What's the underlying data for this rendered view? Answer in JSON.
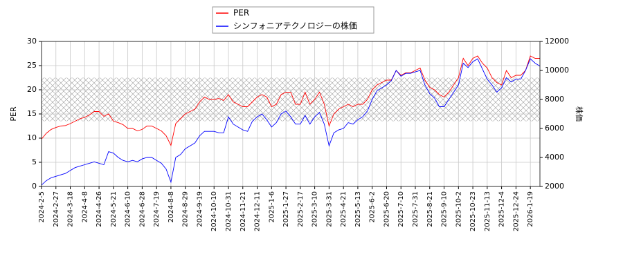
{
  "chart_data": {
    "type": "line",
    "categories": [
      "2024-2-5",
      null,
      null,
      "2024-2-27",
      null,
      null,
      "2024-3-18",
      null,
      null,
      "2024-4-8",
      null,
      null,
      "2024-4-26",
      null,
      null,
      "2024-5-21",
      null,
      null,
      "2024-6-10",
      null,
      null,
      "2024-6-28",
      null,
      null,
      "2024-7-19",
      null,
      null,
      "2024-8-8",
      null,
      null,
      "2024-8-29",
      null,
      null,
      "2024-9-19",
      null,
      null,
      "2024-10-10",
      null,
      null,
      "2024-10-31",
      null,
      null,
      "2024-11-21",
      null,
      null,
      "2024-12-11",
      null,
      null,
      "2025-1-6",
      null,
      null,
      "2025-1-27",
      null,
      null,
      "2025-2-17",
      null,
      null,
      "2025-3-10",
      null,
      null,
      "2025-3-31",
      null,
      null,
      "2025-4-21",
      null,
      null,
      "2025-5-13",
      null,
      null,
      "2025-6-2",
      null,
      null,
      "2025-6-20",
      null,
      null,
      "2025-7-10",
      null,
      null,
      "2025-7-31",
      null,
      null,
      "2025-8-21",
      null,
      null,
      "2025-9-10",
      null,
      null,
      "2025-10-2",
      null,
      null,
      "2025-10-23",
      null,
      null,
      "2025-11-13",
      null,
      null,
      "2025-12-4",
      null,
      null,
      "2025-12-24",
      null,
      null,
      "2026-1-19",
      null,
      null
    ],
    "series": [
      {
        "name": "PER",
        "color": "#ff0000",
        "axis": "y",
        "values": [
          9.8,
          11,
          11.8,
          12.2,
          12.5,
          12.6,
          13,
          13.5,
          14,
          14.3,
          14.8,
          15.5,
          15.5,
          14.5,
          15,
          13.5,
          13.2,
          12.8,
          12,
          12,
          11.5,
          11.8,
          12.5,
          12.5,
          12,
          11.5,
          10.5,
          8.5,
          13,
          14,
          15,
          15.5,
          16,
          17.5,
          18.5,
          18,
          18,
          18.2,
          17.8,
          19,
          17.5,
          17,
          16.5,
          16.5,
          17.5,
          18.5,
          19,
          18.5,
          16.5,
          17,
          19,
          19.5,
          19.5,
          17,
          17,
          19.5,
          17,
          18,
          19.5,
          17,
          12.5,
          15,
          16,
          16.5,
          17,
          16.5,
          17,
          17,
          18,
          20,
          21,
          21.5,
          22,
          22,
          24,
          23,
          23.5,
          23.5,
          24,
          24.5,
          22,
          20.5,
          20,
          19,
          18.5,
          19.5,
          21,
          22.5,
          26.5,
          25,
          26.5,
          27,
          25.5,
          24.5,
          22.5,
          21.5,
          21,
          24,
          22.5,
          23,
          23,
          24,
          27,
          26.5,
          26.5
        ]
      },
      {
        "name": "シンフォニアテクノロジーの株価",
        "color": "#0000ff",
        "axis": "y2",
        "values": [
          2100,
          2400,
          2600,
          2700,
          2800,
          2900,
          3100,
          3300,
          3400,
          3500,
          3600,
          3700,
          3600,
          3500,
          4400,
          4300,
          4000,
          3800,
          3700,
          3800,
          3700,
          3900,
          4000,
          4000,
          3800,
          3600,
          3200,
          2300,
          4000,
          4200,
          4600,
          4800,
          5000,
          5500,
          5800,
          5800,
          5800,
          5700,
          5700,
          6800,
          6300,
          6100,
          5900,
          5800,
          6500,
          6800,
          7000,
          6600,
          6100,
          6400,
          7000,
          7200,
          6800,
          6300,
          6300,
          6900,
          6300,
          6800,
          7100,
          6300,
          4800,
          5700,
          5900,
          6000,
          6400,
          6300,
          6600,
          6800,
          7200,
          8000,
          8600,
          8800,
          9000,
          9300,
          10000,
          9600,
          9800,
          9800,
          9900,
          10000,
          9000,
          8400,
          8100,
          7500,
          7500,
          8000,
          8500,
          9000,
          10500,
          10200,
          10600,
          10800,
          10100,
          9400,
          9000,
          8500,
          8800,
          9500,
          9200,
          9400,
          9400,
          10000,
          10800,
          10500,
          10300
        ]
      }
    ],
    "ylabel": "PER",
    "y2label": "株価",
    "ylim": [
      0,
      30
    ],
    "yticks": [
      0,
      5,
      10,
      15,
      20,
      25,
      30
    ],
    "y2lim": [
      2000,
      12000
    ],
    "y2ticks": [
      2000,
      4000,
      6000,
      8000,
      10000,
      12000
    ],
    "shaded_range": [
      13.5,
      22.5
    ],
    "grid": true,
    "legend": "top"
  }
}
